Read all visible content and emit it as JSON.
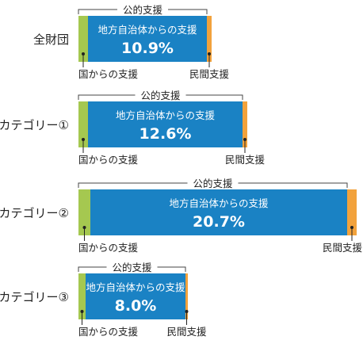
{
  "chart_data": {
    "type": "bar",
    "orientation": "horizontal",
    "stacked": true,
    "categories": [
      "全財団",
      "カテゴリー①",
      "カテゴリー②",
      "カテゴリー③"
    ],
    "series": [
      {
        "name": "国からの支援",
        "values": [
          4,
          4,
          5,
          3
        ],
        "color": "#a5c850"
      },
      {
        "name": "地方自治体からの支援",
        "values": [
          50,
          65,
          108,
          42
        ],
        "color": "#1a82c4"
      },
      {
        "name": "民間支援",
        "values": [
          2,
          2,
          4,
          1
        ],
        "color": "#f2a23c"
      }
    ],
    "value_labels": [
      "10.9%",
      "12.6%",
      "20.7%",
      "8.0%"
    ],
    "bracket_label": "公的支援",
    "segment_labels": {
      "national": "国からの支援",
      "local": "地方自治体からの支援",
      "private": "民間支援"
    }
  }
}
